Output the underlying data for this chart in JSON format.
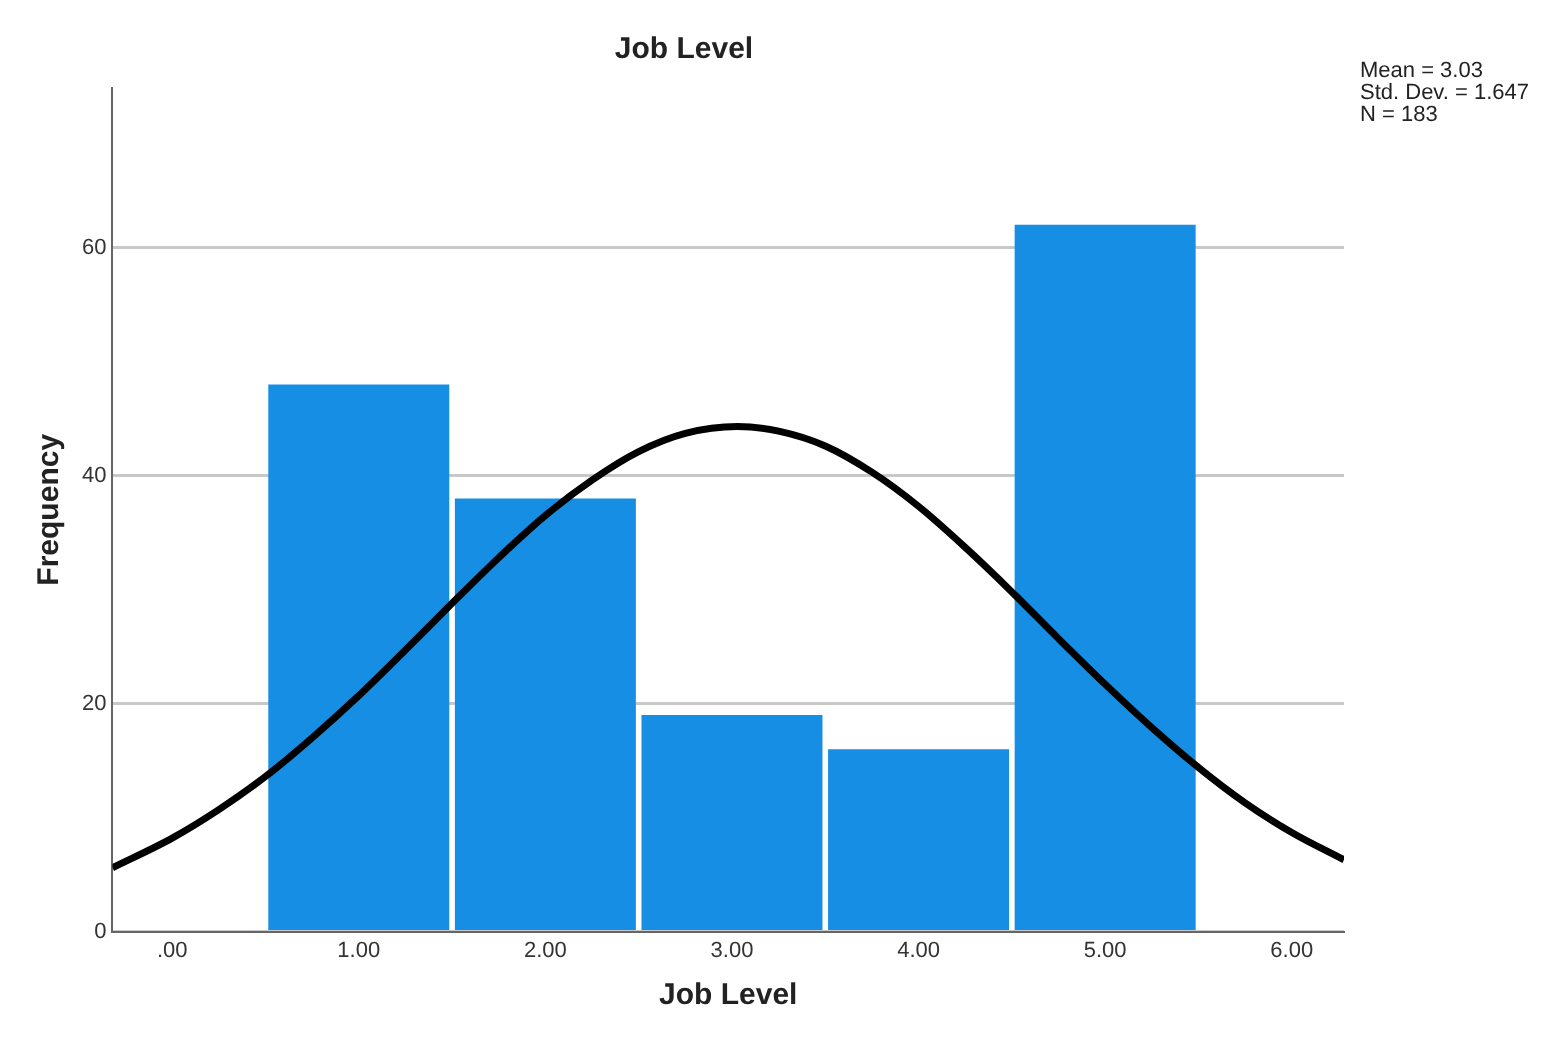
{
  "chart_data": {
    "type": "histogram",
    "title": "Job Level",
    "xlabel": "Job Level",
    "ylabel": "Frequency",
    "bins": [
      0.5,
      1.5,
      2.5,
      3.5,
      4.5,
      5.5
    ],
    "values": [
      48,
      38,
      19,
      16,
      62
    ],
    "color": "#168ee3",
    "series": [
      {
        "type": "line",
        "color": "#000000",
        "x": [
          -0.32,
          0,
          0.25,
          0.5,
          0.75,
          1,
          1.25,
          1.5,
          1.75,
          2,
          2.25,
          2.5,
          2.75,
          3.03,
          3.25,
          3.5,
          3.75,
          4,
          4.25,
          4.5,
          4.75,
          5,
          5.25,
          5.5,
          5.75,
          6,
          6.28
        ],
        "values": [
          5.6,
          8.2,
          10.7,
          13.6,
          17,
          20.7,
          24.7,
          28.8,
          32.8,
          36.5,
          39.6,
          42.1,
          43.7,
          44.3,
          43.9,
          42.6,
          40.3,
          37.3,
          33.7,
          29.8,
          25.7,
          21.7,
          17.9,
          14.4,
          11.3,
          8.7,
          6.3
        ]
      }
    ],
    "xlim": [
      -0.32,
      6.28
    ],
    "xticks": [
      {
        "value": 0,
        "label": ".00"
      },
      {
        "value": 1,
        "label": "1.00"
      },
      {
        "value": 2,
        "label": "2.00"
      },
      {
        "value": 3,
        "label": "3.00"
      },
      {
        "value": 4,
        "label": "4.00"
      },
      {
        "value": 5,
        "label": "5.00"
      },
      {
        "value": 6,
        "label": "6.00"
      }
    ],
    "ylim": [
      0,
      74
    ],
    "yticks": [
      0,
      20,
      40,
      60
    ],
    "grid": "y",
    "annotations": [
      "Mean = 3.03",
      "Std. Dev. = 1.647",
      "N = 183"
    ]
  }
}
